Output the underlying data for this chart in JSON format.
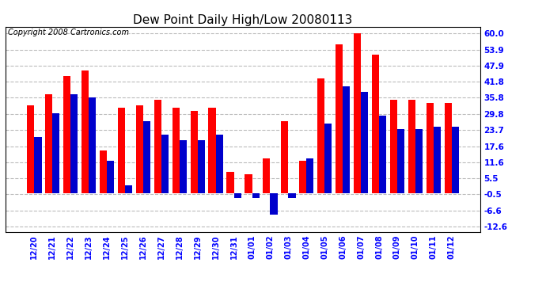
{
  "title": "Dew Point Daily High/Low 20080113",
  "copyright": "Copyright 2008 Cartronics.com",
  "dates": [
    "12/20",
    "12/21",
    "12/22",
    "12/23",
    "12/24",
    "12/25",
    "12/26",
    "12/27",
    "12/28",
    "12/29",
    "12/30",
    "12/31",
    "01/01",
    "01/02",
    "01/03",
    "01/04",
    "01/05",
    "01/06",
    "01/07",
    "01/08",
    "01/09",
    "01/10",
    "01/11",
    "01/12"
  ],
  "highs": [
    33,
    37,
    44,
    46,
    16,
    32,
    33,
    35,
    32,
    31,
    32,
    8,
    7,
    13,
    27,
    12,
    43,
    56,
    60,
    52,
    35,
    35,
    34,
    34
  ],
  "lows": [
    21,
    30,
    37,
    36,
    12,
    3,
    27,
    22,
    20,
    20,
    22,
    -2,
    -2,
    -8,
    -2,
    13,
    26,
    40,
    38,
    29,
    24,
    24,
    25,
    25
  ],
  "high_color": "#ff0000",
  "low_color": "#0000cc",
  "bg_color": "#ffffff",
  "grid_color": "#bbbbbb",
  "yticks": [
    60.0,
    53.9,
    47.9,
    41.8,
    35.8,
    29.8,
    23.7,
    17.6,
    11.6,
    5.5,
    -0.5,
    -6.6,
    -12.6
  ],
  "ylim": [
    -14.5,
    62.5
  ],
  "bar_width": 0.4,
  "title_fontsize": 11,
  "copyright_fontsize": 7
}
